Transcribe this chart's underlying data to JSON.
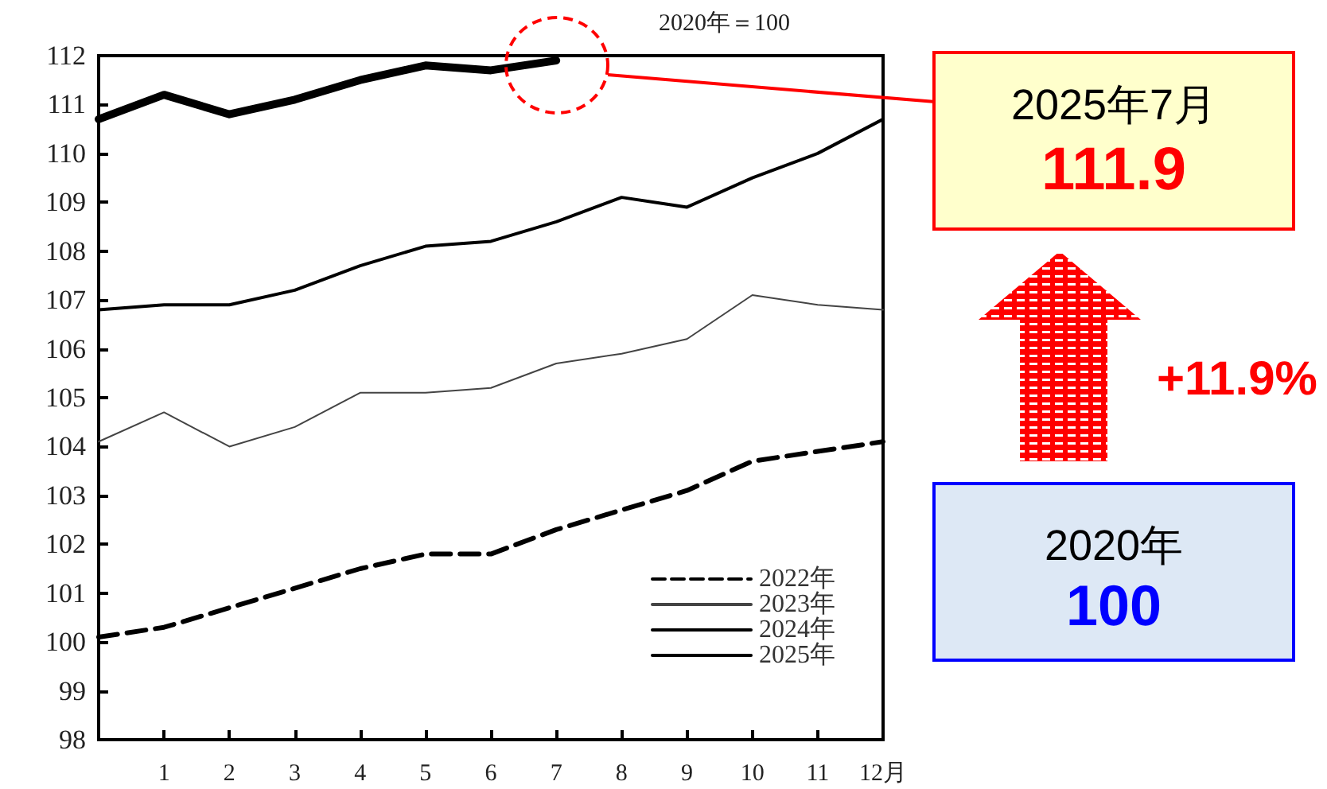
{
  "chart_data": {
    "type": "line",
    "x": [
      0,
      1,
      2,
      3,
      4,
      5,
      6,
      7,
      8,
      9,
      10,
      11,
      12
    ],
    "series": [
      {
        "name": "2022年",
        "color": "#000000",
        "line_style": "dashed",
        "values": [
          100.1,
          100.3,
          100.7,
          101.1,
          101.5,
          101.8,
          101.8,
          102.3,
          102.7,
          103.1,
          103.7,
          103.9,
          104.1
        ]
      },
      {
        "name": "2023年",
        "color": "#444444",
        "line_style": "solid",
        "values": [
          104.1,
          104.7,
          104.0,
          104.4,
          105.1,
          105.1,
          105.2,
          105.7,
          105.9,
          106.2,
          107.1,
          106.9,
          106.8
        ]
      },
      {
        "name": "2024年",
        "color": "#000000",
        "line_style": "solid",
        "values": [
          106.8,
          106.9,
          106.9,
          107.2,
          107.7,
          108.1,
          108.2,
          108.6,
          109.1,
          108.9,
          109.5,
          110.0,
          110.7
        ]
      },
      {
        "name": "2025年",
        "color": "#000000",
        "line_style": "solid",
        "x": [
          0,
          1,
          2,
          3,
          4,
          5,
          6,
          7
        ],
        "values": [
          110.7,
          111.2,
          110.8,
          111.1,
          111.5,
          111.8,
          111.7,
          111.9
        ]
      }
    ],
    "xlim": [
      0,
      12
    ],
    "xticks": [
      1,
      2,
      3,
      4,
      5,
      6,
      7,
      8,
      9,
      10,
      11,
      {
        "value": 12,
        "label": "12月"
      }
    ],
    "ylim": [
      98,
      112
    ],
    "yticks": [
      98,
      99,
      100,
      101,
      102,
      103,
      104,
      105,
      106,
      107,
      108,
      109,
      110,
      111,
      112
    ],
    "grid": false,
    "legend": "bottom right",
    "marker": "none",
    "annotations": [
      "2020年＝100",
      "2025年7月",
      "111.9",
      "+11.9%",
      "2020年",
      "100"
    ]
  }
}
